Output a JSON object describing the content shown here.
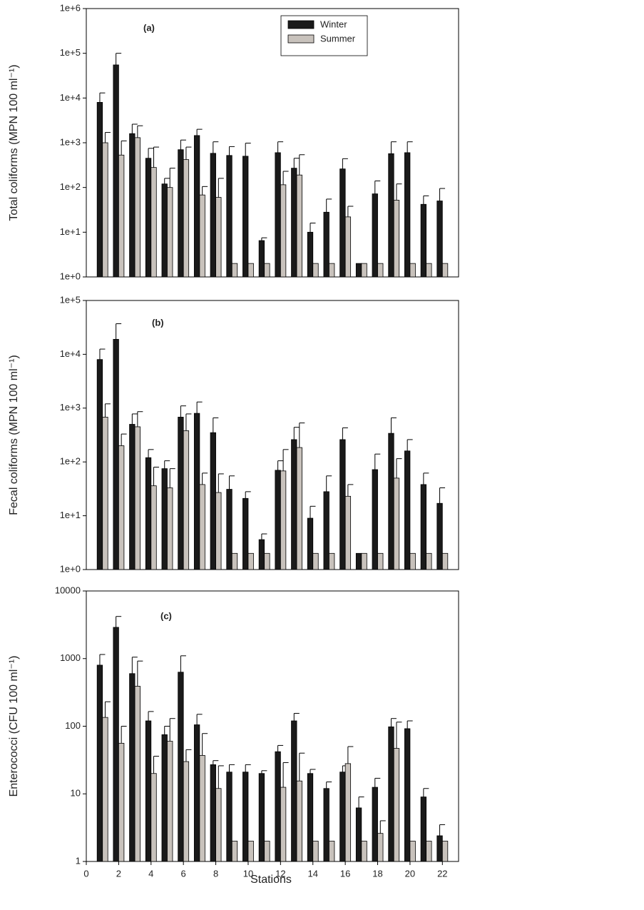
{
  "chart_data": [
    {
      "type": "bar",
      "annotation": "(a)",
      "ylabel": "Total coliforms (MPN 100 ml⁻¹)",
      "log_scale": true,
      "x": [
        1,
        2,
        3,
        4,
        5,
        6,
        7,
        8,
        9,
        10,
        11,
        12,
        13,
        14,
        15,
        16,
        17,
        18,
        19,
        20,
        21,
        22
      ],
      "xlim": [
        0,
        23
      ],
      "ylim": [
        1,
        1000000
      ],
      "yticks": [
        {
          "value": 1,
          "label": "1e+0"
        },
        {
          "value": 10,
          "label": "1e+1"
        },
        {
          "value": 100,
          "label": "1e+2"
        },
        {
          "value": 1000,
          "label": "1e+3"
        },
        {
          "value": 10000,
          "label": "1e+4"
        },
        {
          "value": 100000,
          "label": "1e+5"
        },
        {
          "value": 1000000,
          "label": "1e+6"
        }
      ],
      "legend": "upper center",
      "series": [
        {
          "name": "Winter",
          "color": "#1a1a1a",
          "values": [
            8000,
            55000,
            1600,
            450,
            120,
            700,
            1450,
            580,
            520,
            500,
            6.5,
            600,
            270,
            10,
            28,
            260,
            2,
            72,
            570,
            600,
            42,
            50
          ],
          "errors": [
            5000,
            45000,
            1000,
            300,
            40,
            450,
            550,
            470,
            300,
            480,
            1,
            450,
            180,
            6,
            27,
            180,
            0,
            68,
            480,
            450,
            23,
            45
          ]
        },
        {
          "name": "Summer",
          "color": "#c8c2bc",
          "values": [
            1000,
            530,
            1300,
            280,
            100,
            420,
            68,
            60,
            2,
            2,
            2,
            115,
            190,
            2,
            2,
            22,
            2,
            2,
            52,
            2,
            2,
            2
          ],
          "errors": [
            700,
            570,
            1100,
            520,
            170,
            380,
            37,
            100,
            0,
            0,
            0,
            115,
            350,
            0,
            0,
            16,
            0,
            0,
            68,
            0,
            0,
            0
          ]
        }
      ]
    },
    {
      "type": "bar",
      "annotation": "(b)",
      "ylabel": "Fecal coliforms (MPN 100 ml⁻¹)",
      "log_scale": true,
      "x": [
        1,
        2,
        3,
        4,
        5,
        6,
        7,
        8,
        9,
        10,
        11,
        12,
        13,
        14,
        15,
        16,
        17,
        18,
        19,
        20,
        21,
        22
      ],
      "xlim": [
        0,
        23
      ],
      "ylim": [
        1,
        100000
      ],
      "yticks": [
        {
          "value": 1,
          "label": "1e+0"
        },
        {
          "value": 10,
          "label": "1e+1"
        },
        {
          "value": 100,
          "label": "1e+2"
        },
        {
          "value": 1000,
          "label": "1e+3"
        },
        {
          "value": 10000,
          "label": "1e+4"
        },
        {
          "value": 100000,
          "label": "1e+5"
        }
      ],
      "series": [
        {
          "color": "#1a1a1a",
          "values": [
            8000,
            19000,
            500,
            120,
            75,
            680,
            800,
            350,
            31,
            21,
            3.6,
            70,
            260,
            9,
            28,
            260,
            2,
            72,
            340,
            160,
            38,
            17
          ],
          "errors": [
            4500,
            18000,
            280,
            50,
            30,
            420,
            500,
            310,
            24,
            7,
            1,
            35,
            180,
            6,
            27,
            170,
            0,
            68,
            320,
            100,
            24,
            16
          ]
        },
        {
          "color": "#c8c2bc",
          "values": [
            680,
            200,
            450,
            36,
            33,
            380,
            38,
            27,
            2,
            2,
            2,
            68,
            185,
            2,
            2,
            23,
            2,
            2,
            50,
            2,
            2,
            2
          ],
          "errors": [
            520,
            130,
            410,
            44,
            42,
            400,
            24,
            33,
            0,
            0,
            0,
            102,
            345,
            0,
            0,
            15,
            0,
            0,
            65,
            0,
            0,
            0
          ]
        }
      ]
    },
    {
      "type": "bar",
      "annotation": "(c)",
      "ylabel": "Enterococci (CFU 100 ml⁻¹)",
      "xlabel": "Stations",
      "log_scale": true,
      "x": [
        1,
        2,
        3,
        4,
        5,
        6,
        7,
        8,
        9,
        10,
        11,
        12,
        13,
        14,
        15,
        16,
        17,
        18,
        19,
        20,
        21,
        22
      ],
      "xlim": [
        0,
        23
      ],
      "ylim": [
        1,
        10000
      ],
      "xticks": [
        0,
        2,
        4,
        6,
        8,
        10,
        12,
        14,
        16,
        18,
        20,
        22
      ],
      "yticks": [
        1,
        10,
        100,
        1000,
        10000
      ],
      "series": [
        {
          "color": "#1a1a1a",
          "values": [
            800,
            2900,
            600,
            120,
            75,
            630,
            105,
            27,
            21,
            21,
            20,
            42,
            120,
            20,
            12,
            21,
            6.2,
            12.5,
            98,
            92,
            9,
            2.4
          ],
          "errors": [
            350,
            1300,
            450,
            45,
            25,
            470,
            45,
            4,
            6,
            6,
            2,
            10,
            35,
            3,
            3,
            5,
            2.8,
            4.5,
            32,
            28,
            3,
            1.1
          ]
        },
        {
          "color": "#c8c2bc",
          "values": [
            135,
            56,
            390,
            20,
            60,
            30,
            37,
            12,
            2,
            2,
            2,
            12.5,
            15.5,
            2,
            2,
            28,
            2,
            2.6,
            47,
            2,
            2,
            2
          ],
          "errors": [
            95,
            44,
            530,
            16,
            70,
            15,
            41,
            14,
            0,
            0,
            0,
            16.5,
            24.5,
            0,
            0,
            22,
            0,
            1.4,
            68,
            0,
            0,
            0
          ]
        }
      ]
    }
  ]
}
